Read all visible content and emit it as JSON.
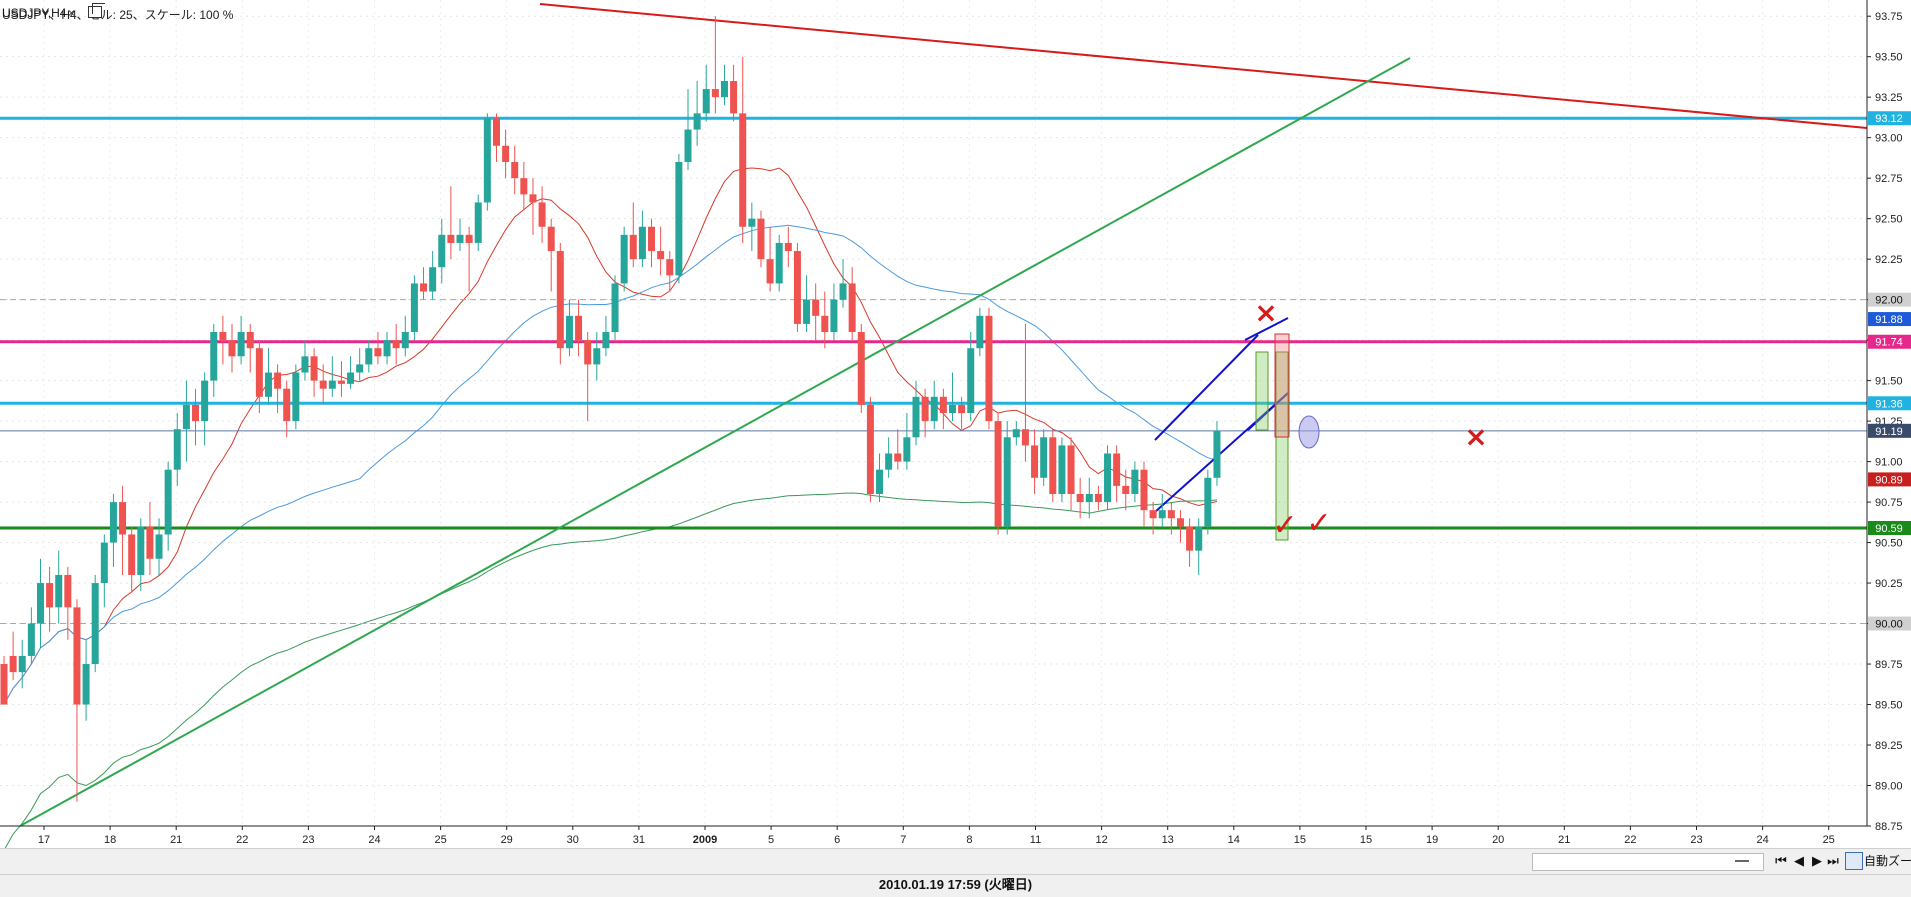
{
  "header": {
    "symbol_info": "USDJPY、H4、セル: 25、スケール: 100 %"
  },
  "tab": {
    "label": "USDJPY,H4",
    "close": "×"
  },
  "toolbar": {
    "zoom_label": "自動ズーム"
  },
  "status": {
    "datetime": "2010.01.19 17:59 (火曜日)"
  },
  "nav": {
    "first": "⏮",
    "prev": "◀",
    "next": "▶",
    "last": "⏭"
  },
  "colors": {
    "bull": "#26a69a",
    "bear": "#ef5350",
    "cyan": "#20b2e0",
    "magenta": "#e6288c",
    "green": "#1a8a1a",
    "red": "#d81a1a",
    "blue": "#1010d0",
    "ma_red": "#d53a2a",
    "ma_blue": "#4a9be0",
    "ma_green": "#3a9a5a",
    "trend_green": "#2fa84f"
  },
  "chart_data": {
    "type": "candlestick",
    "symbol": "USDJPY",
    "timeframe": "H4",
    "ylim": [
      88.75,
      93.85
    ],
    "y_ticks": [
      "88.75",
      "89.00",
      "89.25",
      "89.50",
      "89.75",
      "90.00",
      "90.25",
      "90.50",
      "90.75",
      "91.00",
      "91.25",
      "91.50",
      "91.75",
      "92.00",
      "92.25",
      "92.50",
      "92.75",
      "93.00",
      "93.25",
      "93.50",
      "93.75"
    ],
    "x_labels": [
      "17",
      "18",
      "21",
      "22",
      "23",
      "24",
      "25",
      "29",
      "30",
      "31",
      "2009",
      "5",
      "6",
      "7",
      "8",
      "11",
      "12",
      "13",
      "14",
      "15",
      "15",
      "19",
      "20",
      "21",
      "22",
      "23",
      "24",
      "25"
    ],
    "horizontal_lines": [
      {
        "price": 93.12,
        "color": "cyan",
        "label": "93.12"
      },
      {
        "price": 92.0,
        "color": "dashed-gray",
        "label": "92.00"
      },
      {
        "price": 91.74,
        "color": "magenta",
        "label": "91.74"
      },
      {
        "price": 91.36,
        "color": "cyan",
        "label": "91.36"
      },
      {
        "price": 91.19,
        "color": "thin-blue",
        "label": "91.19"
      },
      {
        "price": 90.59,
        "color": "green",
        "label": "90.59"
      },
      {
        "price": 90.0,
        "color": "dashed-gray",
        "label": "90.00"
      }
    ],
    "price_labels": [
      {
        "price": 91.88,
        "text": "91.88",
        "color": "blue"
      },
      {
        "price": 90.89,
        "text": "90.89",
        "color": "red"
      }
    ],
    "candles": [
      [
        89.75,
        89.5,
        89.55,
        89.8
      ],
      [
        89.8,
        89.7,
        89.65,
        89.95
      ],
      [
        89.7,
        89.8,
        89.6,
        89.9
      ],
      [
        89.8,
        90.0,
        89.75,
        90.1
      ],
      [
        90.0,
        90.25,
        89.85,
        90.4
      ],
      [
        90.25,
        90.1,
        89.95,
        90.35
      ],
      [
        90.1,
        90.3,
        90.0,
        90.45
      ],
      [
        90.3,
        90.1,
        89.9,
        90.35
      ],
      [
        90.1,
        89.5,
        88.9,
        90.15
      ],
      [
        89.5,
        89.75,
        89.4,
        89.9
      ],
      [
        89.75,
        90.25,
        89.7,
        90.3
      ],
      [
        90.25,
        90.5,
        90.1,
        90.55
      ],
      [
        90.5,
        90.75,
        90.35,
        90.8
      ],
      [
        90.75,
        90.55,
        90.3,
        90.85
      ],
      [
        90.55,
        90.3,
        90.2,
        90.6
      ],
      [
        90.3,
        90.6,
        90.2,
        90.65
      ],
      [
        90.6,
        90.4,
        90.3,
        90.75
      ],
      [
        90.4,
        90.55,
        90.3,
        90.65
      ],
      [
        90.55,
        90.95,
        90.45,
        91.0
      ],
      [
        90.95,
        91.2,
        90.85,
        91.3
      ],
      [
        91.2,
        91.35,
        91.0,
        91.5
      ],
      [
        91.35,
        91.25,
        91.1,
        91.45
      ],
      [
        91.25,
        91.5,
        91.1,
        91.55
      ],
      [
        91.5,
        91.8,
        91.4,
        91.85
      ],
      [
        91.8,
        91.75,
        91.6,
        91.9
      ],
      [
        91.75,
        91.65,
        91.55,
        91.85
      ],
      [
        91.65,
        91.8,
        91.6,
        91.9
      ],
      [
        91.8,
        91.7,
        91.55,
        91.85
      ],
      [
        91.7,
        91.4,
        91.3,
        91.75
      ],
      [
        91.4,
        91.55,
        91.35,
        91.7
      ],
      [
        91.55,
        91.45,
        91.3,
        91.6
      ],
      [
        91.45,
        91.25,
        91.15,
        91.5
      ],
      [
        91.25,
        91.55,
        91.2,
        91.6
      ],
      [
        91.55,
        91.65,
        91.5,
        91.75
      ],
      [
        91.65,
        91.5,
        91.4,
        91.7
      ],
      [
        91.5,
        91.45,
        91.35,
        91.6
      ],
      [
        91.45,
        91.5,
        91.4,
        91.65
      ],
      [
        91.5,
        91.48,
        91.4,
        91.62
      ],
      [
        91.48,
        91.55,
        91.45,
        91.65
      ],
      [
        91.55,
        91.6,
        91.5,
        91.7
      ],
      [
        91.6,
        91.7,
        91.55,
        91.75
      ],
      [
        91.7,
        91.65,
        91.6,
        91.8
      ],
      [
        91.65,
        91.75,
        91.6,
        91.8
      ],
      [
        91.75,
        91.7,
        91.6,
        91.85
      ],
      [
        91.7,
        91.8,
        91.65,
        91.9
      ],
      [
        91.8,
        92.1,
        91.75,
        92.15
      ],
      [
        92.1,
        92.05,
        92.0,
        92.2
      ],
      [
        92.05,
        92.2,
        92.0,
        92.3
      ],
      [
        92.2,
        92.4,
        92.1,
        92.5
      ],
      [
        92.4,
        92.35,
        92.25,
        92.7
      ],
      [
        92.35,
        92.4,
        92.3,
        92.5
      ],
      [
        92.4,
        92.35,
        92.05,
        92.45
      ],
      [
        92.35,
        92.6,
        92.3,
        92.65
      ],
      [
        92.6,
        93.12,
        92.55,
        93.15
      ],
      [
        93.12,
        92.95,
        92.85,
        93.15
      ],
      [
        92.95,
        92.85,
        92.75,
        93.05
      ],
      [
        92.85,
        92.75,
        92.65,
        92.95
      ],
      [
        92.75,
        92.65,
        92.55,
        92.85
      ],
      [
        92.65,
        92.6,
        92.4,
        92.75
      ],
      [
        92.6,
        92.45,
        92.35,
        92.7
      ],
      [
        92.45,
        92.3,
        92.05,
        92.5
      ],
      [
        92.3,
        91.7,
        91.6,
        92.35
      ],
      [
        91.7,
        91.9,
        91.65,
        92.0
      ],
      [
        91.9,
        91.75,
        91.65,
        92.0
      ],
      [
        91.75,
        91.6,
        91.25,
        91.8
      ],
      [
        91.6,
        91.7,
        91.5,
        91.8
      ],
      [
        91.7,
        91.8,
        91.65,
        91.9
      ],
      [
        91.8,
        92.1,
        91.75,
        92.15
      ],
      [
        92.1,
        92.4,
        92.05,
        92.45
      ],
      [
        92.4,
        92.25,
        92.2,
        92.6
      ],
      [
        92.25,
        92.45,
        92.2,
        92.55
      ],
      [
        92.45,
        92.3,
        92.2,
        92.5
      ],
      [
        92.3,
        92.25,
        92.15,
        92.45
      ],
      [
        92.25,
        92.15,
        92.05,
        92.3
      ],
      [
        92.15,
        92.85,
        92.1,
        92.9
      ],
      [
        92.85,
        93.05,
        92.8,
        93.3
      ],
      [
        93.05,
        93.15,
        92.95,
        93.35
      ],
      [
        93.15,
        93.3,
        93.1,
        93.45
      ],
      [
        93.3,
        93.25,
        93.15,
        93.75
      ],
      [
        93.25,
        93.35,
        93.2,
        93.45
      ],
      [
        93.35,
        93.15,
        93.1,
        93.45
      ],
      [
        93.15,
        92.45,
        92.35,
        93.5
      ],
      [
        92.45,
        92.5,
        92.3,
        92.6
      ],
      [
        92.5,
        92.25,
        92.2,
        92.55
      ],
      [
        92.25,
        92.1,
        92.05,
        92.45
      ],
      [
        92.1,
        92.35,
        92.05,
        92.4
      ],
      [
        92.35,
        92.3,
        92.2,
        92.45
      ],
      [
        92.3,
        91.85,
        91.8,
        92.35
      ],
      [
        91.85,
        92.0,
        91.8,
        92.15
      ],
      [
        92.0,
        91.9,
        91.75,
        92.1
      ],
      [
        91.9,
        91.8,
        91.7,
        92.05
      ],
      [
        91.8,
        92.0,
        91.75,
        92.1
      ],
      [
        92.0,
        92.1,
        91.95,
        92.25
      ],
      [
        92.1,
        91.8,
        91.75,
        92.2
      ],
      [
        91.8,
        91.35,
        91.3,
        91.85
      ],
      [
        91.35,
        90.8,
        90.75,
        91.4
      ],
      [
        90.8,
        90.95,
        90.75,
        91.05
      ],
      [
        90.95,
        91.05,
        90.9,
        91.15
      ],
      [
        91.05,
        91.0,
        90.95,
        91.2
      ],
      [
        91.0,
        91.15,
        90.95,
        91.3
      ],
      [
        91.15,
        91.4,
        91.1,
        91.5
      ],
      [
        91.4,
        91.25,
        91.15,
        91.45
      ],
      [
        91.25,
        91.4,
        91.2,
        91.5
      ],
      [
        91.4,
        91.3,
        91.2,
        91.45
      ],
      [
        91.3,
        91.35,
        91.25,
        91.55
      ],
      [
        91.35,
        91.3,
        91.2,
        91.4
      ],
      [
        91.3,
        91.7,
        91.25,
        91.8
      ],
      [
        91.7,
        91.9,
        91.65,
        91.95
      ],
      [
        91.9,
        91.25,
        91.2,
        91.95
      ],
      [
        91.25,
        90.6,
        90.55,
        91.3
      ],
      [
        90.6,
        91.15,
        90.55,
        91.25
      ],
      [
        91.15,
        91.2,
        91.1,
        91.25
      ],
      [
        91.2,
        91.1,
        91.0,
        91.85
      ],
      [
        91.1,
        90.9,
        90.8,
        91.2
      ],
      [
        90.9,
        91.15,
        90.85,
        91.2
      ],
      [
        91.15,
        90.8,
        90.75,
        91.2
      ],
      [
        90.8,
        91.1,
        90.75,
        91.15
      ],
      [
        91.1,
        90.8,
        90.7,
        91.15
      ],
      [
        90.8,
        90.75,
        90.65,
        90.9
      ],
      [
        90.75,
        90.8,
        90.65,
        90.9
      ],
      [
        90.8,
        90.75,
        90.7,
        90.85
      ],
      [
        90.75,
        91.05,
        90.7,
        91.1
      ],
      [
        91.05,
        90.85,
        90.75,
        91.1
      ],
      [
        90.85,
        90.8,
        90.7,
        90.95
      ],
      [
        90.8,
        90.95,
        90.75,
        91.0
      ],
      [
        90.95,
        90.7,
        90.6,
        91.0
      ],
      [
        90.7,
        90.65,
        90.55,
        90.75
      ],
      [
        90.65,
        90.7,
        90.6,
        90.8
      ],
      [
        90.7,
        90.65,
        90.55,
        90.75
      ],
      [
        90.65,
        90.6,
        90.5,
        90.7
      ],
      [
        90.6,
        90.45,
        90.35,
        90.65
      ],
      [
        90.45,
        90.6,
        90.3,
        90.65
      ],
      [
        90.6,
        90.9,
        90.55,
        90.95
      ],
      [
        90.9,
        91.19,
        90.85,
        91.25
      ]
    ],
    "annotations": [
      {
        "type": "cross",
        "label": "×"
      },
      {
        "type": "check",
        "label": "✓"
      },
      {
        "type": "check",
        "label": "✓"
      },
      {
        "type": "cross",
        "label": "×"
      }
    ]
  }
}
